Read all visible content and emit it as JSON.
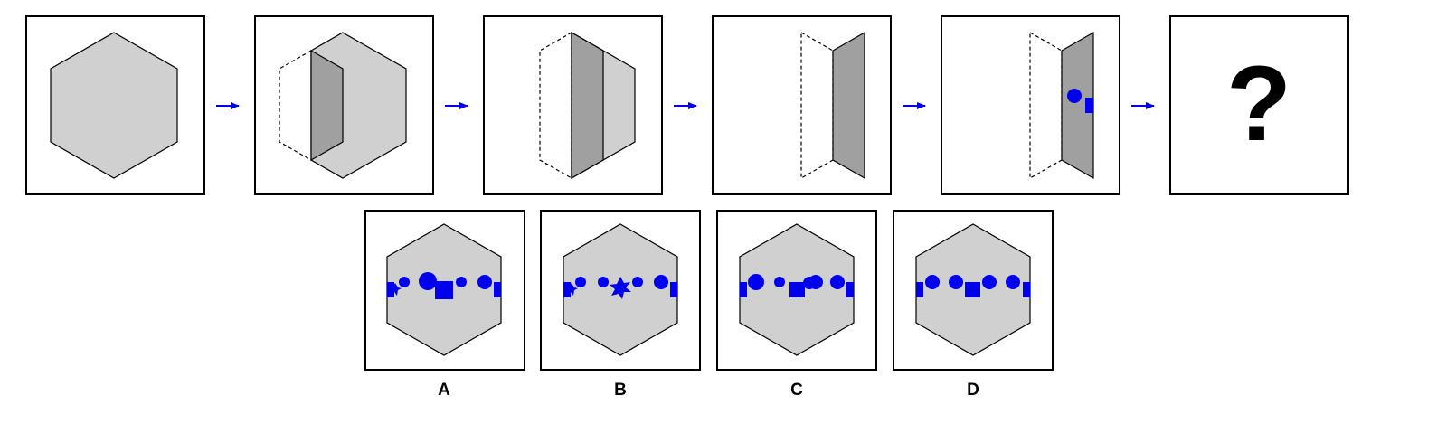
{
  "colors": {
    "face_fill": "#d0d0d0",
    "fold_fill": "#a0a0a0",
    "outline": "#000000",
    "hole_fill": "#0000ee",
    "arrow": "#0000ee"
  },
  "sequence": {
    "steps": [
      {
        "icon": "hexagon-paper"
      },
      {
        "icon": "fold-left-step"
      },
      {
        "icon": "fold-right-step"
      },
      {
        "icon": "folded-strip"
      },
      {
        "icon": "punched-strip"
      }
    ],
    "question_mark": "?"
  },
  "options": [
    {
      "label": "A"
    },
    {
      "label": "B"
    },
    {
      "label": "C"
    },
    {
      "label": "D"
    }
  ]
}
